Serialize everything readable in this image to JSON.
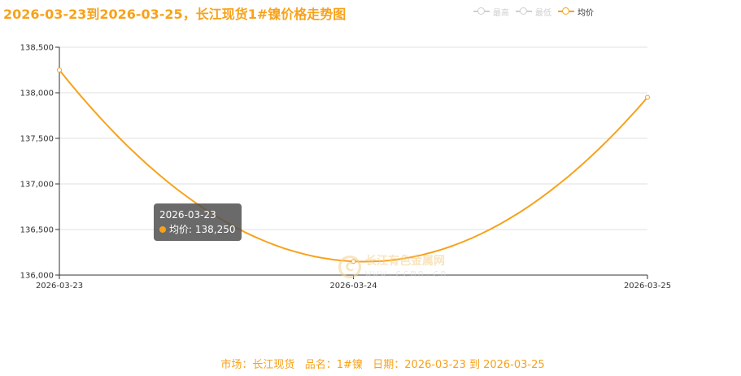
{
  "title": "2026-03-23到2026-03-25，长江现货1#镍价格走势图",
  "legend": [
    {
      "label": "最高",
      "active": false
    },
    {
      "label": "最低",
      "active": false
    },
    {
      "label": "均价",
      "active": true
    }
  ],
  "tooltip": {
    "date": "2026-03-23",
    "series": "均价",
    "value": "138,250"
  },
  "watermark": {
    "name": "长江有色金属网",
    "url": "www.ccmn.cn"
  },
  "footer": "市场：长江现货   品名：1#镍   日期：2026-03-23 到 2026-03-25",
  "colors": {
    "accent": "#f7a21a",
    "grid": "#e0e0e0",
    "axis": "#333333"
  },
  "chart_data": {
    "type": "line",
    "title": "2026-03-23到2026-03-25，长江现货1#镍价格走势图",
    "categories": [
      "2026-03-23",
      "2026-03-24",
      "2026-03-25"
    ],
    "series": [
      {
        "name": "均价",
        "values": [
          138250,
          136150,
          137950
        ]
      }
    ],
    "ylim": [
      136000,
      138500
    ],
    "yticks": [
      136000,
      136500,
      137000,
      137500,
      138000,
      138500
    ],
    "ytick_labels": [
      "136,000",
      "136,500",
      "137,000",
      "137,500",
      "138,000",
      "138,500"
    ],
    "grid": true,
    "legend_position": "top-right"
  }
}
